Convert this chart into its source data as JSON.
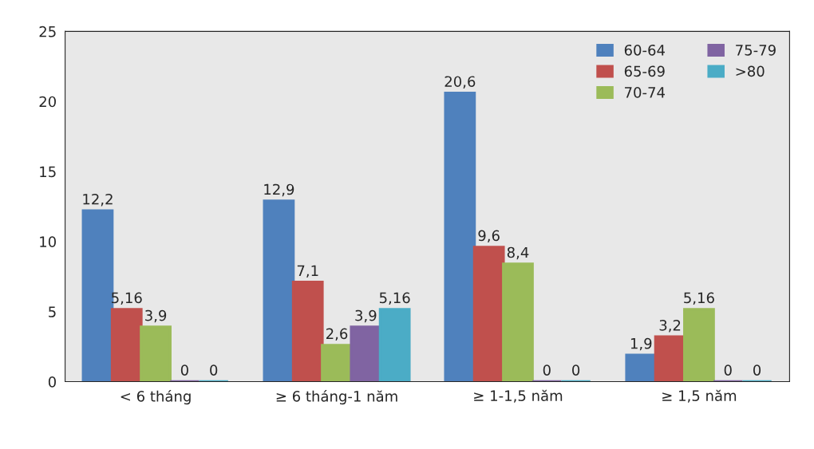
{
  "chart_data": {
    "type": "bar",
    "categories": [
      "< 6 tháng",
      "≥ 6 tháng-1 năm",
      "≥ 1-1,5 năm",
      "≥ 1,5 năm"
    ],
    "series": [
      {
        "name": "60-64",
        "color": "#4f81bd",
        "values": [
          12.2,
          12.9,
          20.6,
          1.9
        ],
        "value_labels": [
          "12,2",
          "12,9",
          "20,6",
          "1,9"
        ]
      },
      {
        "name": "65-69",
        "color": "#c0504d",
        "values": [
          5.16,
          7.1,
          9.6,
          3.2
        ],
        "value_labels": [
          "5,16",
          "7,1",
          "9,6",
          "3,2"
        ]
      },
      {
        "name": "70-74",
        "color": "#9bbb59",
        "values": [
          3.9,
          2.6,
          8.4,
          5.16
        ],
        "value_labels": [
          "3,9",
          "2,6",
          "8,4",
          "5,16"
        ]
      },
      {
        "name": "75-79",
        "color": "#8064a2",
        "values": [
          0,
          3.9,
          0,
          0
        ],
        "value_labels": [
          "0",
          "3,9",
          "0",
          "0"
        ]
      },
      {
        "name": ">80",
        "color": "#4bacc6",
        "values": [
          0,
          5.16,
          0,
          0
        ],
        "value_labels": [
          "0",
          "5,16",
          "0",
          "0"
        ]
      }
    ],
    "ylim": [
      0,
      25
    ],
    "yticks": [
      0,
      5,
      10,
      15,
      20,
      25
    ],
    "grid": false,
    "legend": "top right"
  }
}
